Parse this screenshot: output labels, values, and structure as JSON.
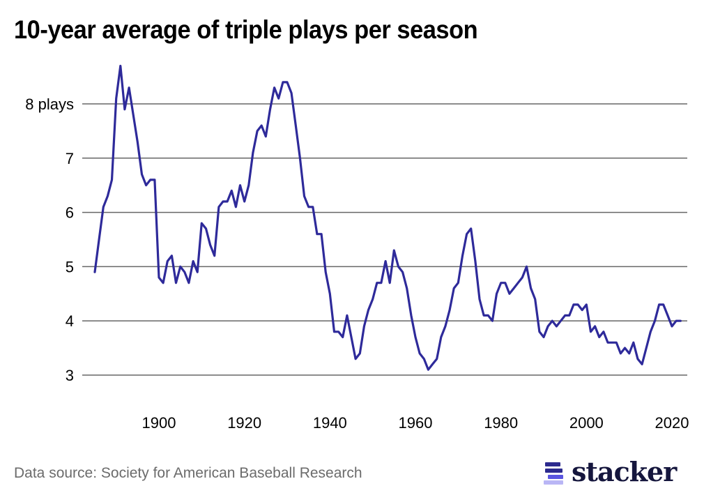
{
  "title": "10-year average of triple plays per season",
  "source": "Data source: Society for American Baseball Research",
  "brand": {
    "name": "stacker",
    "text_color": "#15163d",
    "bar_colors": [
      "#2c2a8e",
      "#5a55e0",
      "#b9b6f5"
    ]
  },
  "colors": {
    "line": "#2e2a9a",
    "grid": "#666666",
    "tick_text": "#000000"
  },
  "chart_data": {
    "type": "line",
    "title": "10-year average of triple plays per season",
    "xlabel": "",
    "ylabel": "",
    "ylim": [
      3,
      8
    ],
    "xlim": [
      1885,
      2022
    ],
    "grid": true,
    "legend": "none",
    "y_ticks": [
      {
        "value": 8,
        "label": "8 plays"
      },
      {
        "value": 7,
        "label": "7"
      },
      {
        "value": 6,
        "label": "6"
      },
      {
        "value": 5,
        "label": "5"
      },
      {
        "value": 4,
        "label": "4"
      },
      {
        "value": 3,
        "label": "3"
      }
    ],
    "x_ticks": [
      {
        "value": 1900,
        "label": "1900"
      },
      {
        "value": 1920,
        "label": "1920"
      },
      {
        "value": 1940,
        "label": "1940"
      },
      {
        "value": 1960,
        "label": "1960"
      },
      {
        "value": 1980,
        "label": "1980"
      },
      {
        "value": 2000,
        "label": "2000"
      },
      {
        "value": 2020,
        "label": "2020"
      }
    ],
    "series": [
      {
        "name": "10-year average triple plays",
        "x_start": 1885,
        "values": [
          4.9,
          5.5,
          6.1,
          6.3,
          6.6,
          8.1,
          8.7,
          7.9,
          8.3,
          7.8,
          7.3,
          6.7,
          6.5,
          6.6,
          6.6,
          4.8,
          4.7,
          5.1,
          5.2,
          4.7,
          5.0,
          4.9,
          4.7,
          5.1,
          4.9,
          5.8,
          5.7,
          5.4,
          5.2,
          6.1,
          6.2,
          6.2,
          6.4,
          6.1,
          6.5,
          6.2,
          6.5,
          7.1,
          7.5,
          7.6,
          7.4,
          7.9,
          8.3,
          8.1,
          8.4,
          8.4,
          8.2,
          7.6,
          7.0,
          6.3,
          6.1,
          6.1,
          5.6,
          5.6,
          4.9,
          4.5,
          3.8,
          3.8,
          3.7,
          4.1,
          3.7,
          3.3,
          3.4,
          3.9,
          4.2,
          4.4,
          4.7,
          4.7,
          5.1,
          4.7,
          5.3,
          5.0,
          4.9,
          4.6,
          4.1,
          3.7,
          3.4,
          3.3,
          3.1,
          3.2,
          3.3,
          3.7,
          3.9,
          4.2,
          4.6,
          4.7,
          5.2,
          5.6,
          5.7,
          5.1,
          4.4,
          4.1,
          4.1,
          4.0,
          4.5,
          4.7,
          4.7,
          4.5,
          4.6,
          4.7,
          4.8,
          5.0,
          4.6,
          4.4,
          3.8,
          3.7,
          3.9,
          4.0,
          3.9,
          4.0,
          4.1,
          4.1,
          4.3,
          4.3,
          4.2,
          4.3,
          3.8,
          3.9,
          3.7,
          3.8,
          3.6,
          3.6,
          3.6,
          3.4,
          3.5,
          3.4,
          3.6,
          3.3,
          3.2,
          3.5,
          3.8,
          4.0,
          4.3,
          4.3,
          4.1,
          3.9,
          4.0,
          4.0
        ]
      }
    ]
  }
}
